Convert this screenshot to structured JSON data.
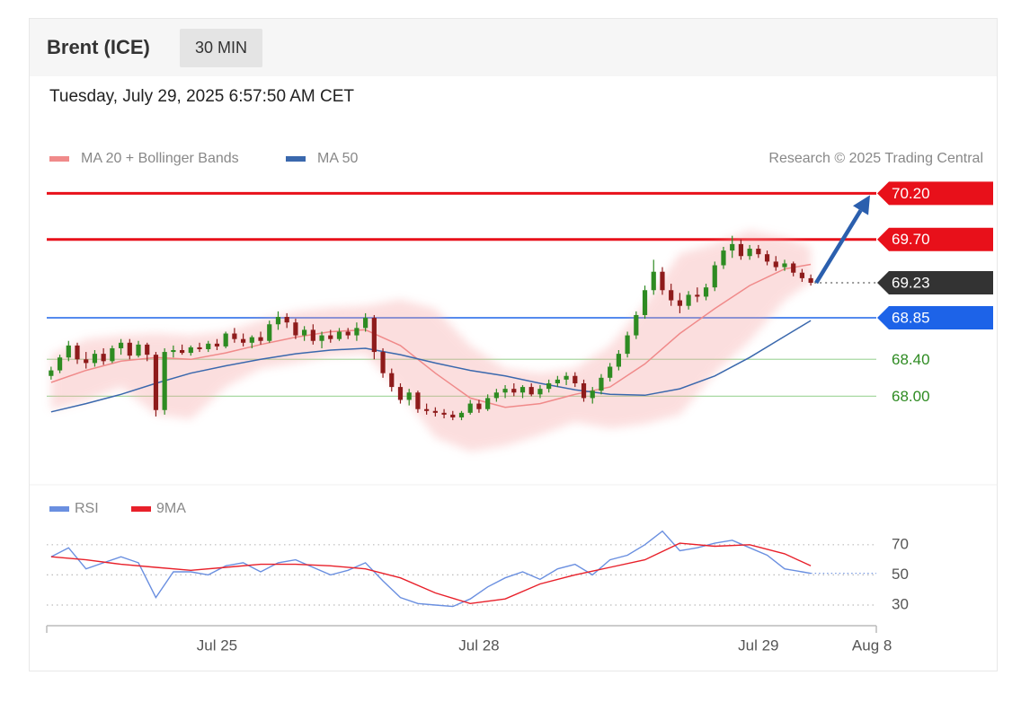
{
  "chart_data": {
    "type": "candlestick",
    "title": "Brent (ICE)",
    "timeframe": "30 MIN",
    "subtitle": "Tuesday, July 29, 2025 6:57:50 AM CET",
    "credit": "Research © 2025 Trading Central",
    "up_color": "#2e8b22",
    "down_color": "#8e1b1b",
    "x": [
      0,
      1,
      2,
      3,
      4,
      5,
      6,
      7,
      8,
      9,
      10,
      11,
      12,
      13,
      14,
      15,
      16,
      17,
      18,
      19,
      20,
      21,
      22,
      23,
      24,
      25,
      26,
      27,
      28,
      29,
      30,
      31,
      32,
      33,
      34,
      35,
      36,
      37,
      38,
      39,
      40,
      41,
      42,
      43,
      44,
      45,
      46,
      47,
      48,
      49,
      50,
      51,
      52,
      53,
      54,
      55,
      56,
      57,
      58,
      59,
      60,
      61,
      62,
      63,
      64,
      65,
      66,
      67,
      68,
      69,
      70,
      71,
      72,
      73,
      74,
      75,
      76,
      77,
      78,
      79,
      80,
      81,
      82,
      83,
      84,
      85,
      86,
      87
    ],
    "open": [
      68.22,
      68.28,
      68.42,
      68.55,
      68.4,
      68.36,
      68.46,
      68.38,
      68.52,
      68.58,
      68.44,
      68.56,
      68.45,
      67.85,
      68.48,
      68.5,
      68.47,
      68.53,
      68.51,
      68.57,
      68.54,
      68.68,
      68.62,
      68.58,
      68.64,
      68.6,
      68.78,
      68.86,
      68.8,
      68.66,
      68.72,
      68.6,
      68.66,
      68.62,
      68.7,
      68.66,
      68.74,
      68.85,
      68.48,
      68.25,
      68.1,
      67.96,
      68.04,
      67.86,
      67.84,
      67.82,
      67.8,
      67.77,
      67.82,
      67.92,
      67.86,
      67.98,
      68.04,
      68.08,
      68.04,
      68.1,
      68.02,
      68.08,
      68.14,
      68.18,
      68.22,
      68.14,
      67.98,
      68.06,
      68.2,
      68.32,
      68.46,
      68.66,
      68.88,
      69.15,
      69.35,
      69.15,
      69.04,
      68.98,
      69.1,
      69.08,
      69.18,
      69.42,
      69.58,
      69.65,
      69.52,
      69.6,
      69.54,
      69.46,
      69.4,
      69.44,
      69.34,
      69.28
    ],
    "high": [
      68.32,
      68.45,
      68.6,
      68.58,
      68.48,
      68.5,
      68.52,
      68.55,
      68.62,
      68.62,
      68.6,
      68.58,
      68.48,
      68.52,
      68.55,
      68.56,
      68.55,
      68.58,
      68.6,
      68.62,
      68.7,
      68.74,
      68.68,
      68.66,
      68.7,
      68.82,
      68.92,
      68.9,
      68.84,
      68.76,
      68.78,
      68.7,
      68.72,
      68.74,
      68.74,
      68.8,
      68.9,
      68.88,
      68.52,
      68.3,
      68.14,
      68.08,
      68.06,
      67.92,
      67.88,
      67.86,
      67.84,
      67.84,
      67.96,
      67.96,
      68.02,
      68.08,
      68.12,
      68.14,
      68.12,
      68.14,
      68.12,
      68.18,
      68.22,
      68.26,
      68.26,
      68.18,
      68.1,
      68.24,
      68.36,
      68.5,
      68.7,
      68.92,
      69.2,
      69.48,
      69.4,
      69.22,
      69.12,
      69.14,
      69.18,
      69.22,
      69.46,
      69.62,
      69.74,
      69.7,
      69.64,
      69.64,
      69.58,
      69.52,
      69.48,
      69.46,
      69.38,
      69.32
    ],
    "low": [
      68.18,
      68.25,
      68.38,
      68.35,
      68.3,
      68.32,
      68.34,
      68.36,
      68.45,
      68.4,
      68.42,
      68.38,
      67.78,
      67.8,
      68.42,
      68.45,
      68.44,
      68.48,
      68.48,
      68.5,
      68.52,
      68.58,
      68.54,
      68.52,
      68.56,
      68.58,
      68.72,
      68.74,
      68.62,
      68.6,
      68.56,
      68.52,
      68.58,
      68.6,
      68.62,
      68.6,
      68.7,
      68.4,
      68.2,
      68.05,
      67.92,
      67.9,
      67.82,
      67.8,
      67.78,
      67.76,
      67.74,
      67.74,
      67.8,
      67.82,
      67.84,
      67.94,
      67.98,
      68.0,
      67.98,
      68.0,
      67.98,
      68.04,
      68.1,
      68.12,
      68.1,
      67.94,
      67.92,
      68.02,
      68.16,
      68.28,
      68.42,
      68.62,
      68.84,
      69.1,
      69.1,
      68.98,
      68.9,
      68.94,
      69.02,
      69.04,
      69.14,
      69.38,
      69.5,
      69.48,
      69.48,
      69.5,
      69.42,
      69.36,
      69.36,
      69.3,
      69.24,
      69.2
    ],
    "close": [
      68.28,
      68.42,
      68.55,
      68.4,
      68.36,
      68.46,
      68.38,
      68.52,
      68.58,
      68.44,
      68.56,
      68.45,
      67.85,
      68.48,
      68.5,
      68.47,
      68.53,
      68.51,
      68.57,
      68.54,
      68.68,
      68.62,
      68.58,
      68.64,
      68.6,
      68.78,
      68.86,
      68.8,
      68.66,
      68.72,
      68.6,
      68.66,
      68.62,
      68.7,
      68.66,
      68.74,
      68.85,
      68.48,
      68.25,
      68.1,
      67.96,
      68.04,
      67.86,
      67.84,
      67.82,
      67.8,
      67.77,
      67.82,
      67.92,
      67.86,
      67.98,
      68.04,
      68.08,
      68.04,
      68.1,
      68.02,
      68.08,
      68.14,
      68.18,
      68.22,
      68.14,
      67.98,
      68.06,
      68.2,
      68.32,
      68.46,
      68.66,
      68.88,
      69.15,
      69.35,
      69.15,
      69.04,
      68.98,
      69.1,
      69.08,
      69.18,
      69.42,
      69.58,
      69.65,
      69.52,
      69.6,
      69.54,
      69.46,
      69.4,
      69.44,
      69.34,
      69.28,
      69.23
    ],
    "series": [
      {
        "name": "MA 20 + Bollinger Bands",
        "color": "#f08a8a",
        "band_color": "#f6a3a3",
        "x": [
          0,
          4,
          8,
          12,
          16,
          20,
          24,
          28,
          32,
          36,
          40,
          44,
          48,
          52,
          56,
          60,
          64,
          68,
          72,
          76,
          80,
          84,
          87
        ],
        "values": [
          68.15,
          68.28,
          68.38,
          68.42,
          68.4,
          68.47,
          68.56,
          68.64,
          68.7,
          68.72,
          68.55,
          68.25,
          67.98,
          67.88,
          67.92,
          68.02,
          68.1,
          68.35,
          68.68,
          68.95,
          69.2,
          69.38,
          69.43
        ],
        "upper": [
          68.45,
          68.62,
          68.66,
          68.68,
          68.66,
          68.7,
          68.82,
          68.92,
          68.96,
          68.98,
          69.05,
          68.95,
          68.55,
          68.3,
          68.25,
          68.3,
          68.55,
          69.0,
          69.55,
          69.65,
          69.8,
          69.72,
          69.62
        ],
        "lower": [
          67.85,
          67.95,
          68.1,
          67.8,
          67.75,
          68.1,
          68.3,
          68.36,
          68.44,
          68.46,
          68.05,
          67.55,
          67.4,
          67.46,
          67.58,
          67.72,
          67.65,
          67.7,
          67.8,
          68.25,
          68.6,
          69.04,
          69.24
        ]
      },
      {
        "name": "MA 50",
        "color": "#3a68ad",
        "x": [
          0,
          4,
          8,
          12,
          16,
          20,
          24,
          28,
          32,
          36,
          40,
          44,
          48,
          52,
          56,
          60,
          64,
          68,
          72,
          76,
          80,
          84,
          87
        ],
        "values": [
          67.83,
          67.92,
          68.02,
          68.14,
          68.25,
          68.33,
          68.4,
          68.46,
          68.5,
          68.52,
          68.45,
          68.36,
          68.28,
          68.22,
          68.14,
          68.07,
          68.02,
          68.01,
          68.08,
          68.22,
          68.42,
          68.65,
          68.82
        ]
      }
    ],
    "levels": [
      {
        "value": 70.2,
        "label": "70.20",
        "color": "#e8101a",
        "style": "bold",
        "tag": true
      },
      {
        "value": 69.7,
        "label": "69.70",
        "color": "#e8101a",
        "style": "bold",
        "tag": true
      },
      {
        "value": 69.23,
        "label": "69.23",
        "color": "#333333",
        "style": "dotted",
        "tag": true
      },
      {
        "value": 68.85,
        "label": "68.85",
        "color": "#1d63e8",
        "style": "line",
        "tag": true
      },
      {
        "value": 68.4,
        "label": "68.40",
        "color": "#2e8b22",
        "style": "thin",
        "tag": false
      },
      {
        "value": 68.0,
        "label": "68.00",
        "color": "#2e8b22",
        "style": "thin",
        "tag": false
      }
    ],
    "xlim": [
      -0.5,
      94.5
    ],
    "xticks": [
      {
        "value": 19,
        "label": "Jul 25"
      },
      {
        "value": 49,
        "label": "Jul 28"
      },
      {
        "value": 81,
        "label": "Jul 29"
      },
      {
        "value": 94,
        "label": "Aug 8"
      }
    ],
    "ylim": [
      67.1,
      70.35
    ],
    "rsi": {
      "ylim": [
        22,
        80
      ],
      "yticks": [
        30,
        50,
        70
      ],
      "series": [
        {
          "name": "RSI",
          "color": "#6a8fe0",
          "x": [
            0,
            2,
            4,
            6,
            8,
            10,
            12,
            14,
            16,
            18,
            20,
            22,
            24,
            26,
            28,
            30,
            32,
            34,
            36,
            38,
            40,
            42,
            44,
            46,
            48,
            50,
            52,
            54,
            56,
            58,
            60,
            62,
            64,
            66,
            68,
            70,
            72,
            74,
            76,
            78,
            80,
            82,
            84,
            86,
            87
          ],
          "values": [
            62,
            68,
            54,
            58,
            62,
            58,
            35,
            52,
            52,
            50,
            56,
            58,
            52,
            58,
            60,
            55,
            50,
            53,
            58,
            46,
            35,
            31,
            30,
            29,
            34,
            42,
            48,
            52,
            47,
            54,
            57,
            50,
            60,
            63,
            70,
            79,
            66,
            68,
            71,
            73,
            68,
            63,
            54,
            52,
            51
          ]
        },
        {
          "name": "9MA",
          "color": "#e8202a",
          "x": [
            0,
            4,
            8,
            12,
            16,
            20,
            24,
            28,
            32,
            36,
            40,
            44,
            48,
            52,
            56,
            60,
            64,
            68,
            72,
            76,
            80,
            84,
            87
          ],
          "values": [
            62,
            60,
            57,
            55,
            53,
            55,
            57,
            57,
            56,
            54,
            48,
            38,
            31,
            34,
            44,
            50,
            55,
            60,
            71,
            69,
            70,
            64,
            56
          ]
        }
      ]
    }
  }
}
